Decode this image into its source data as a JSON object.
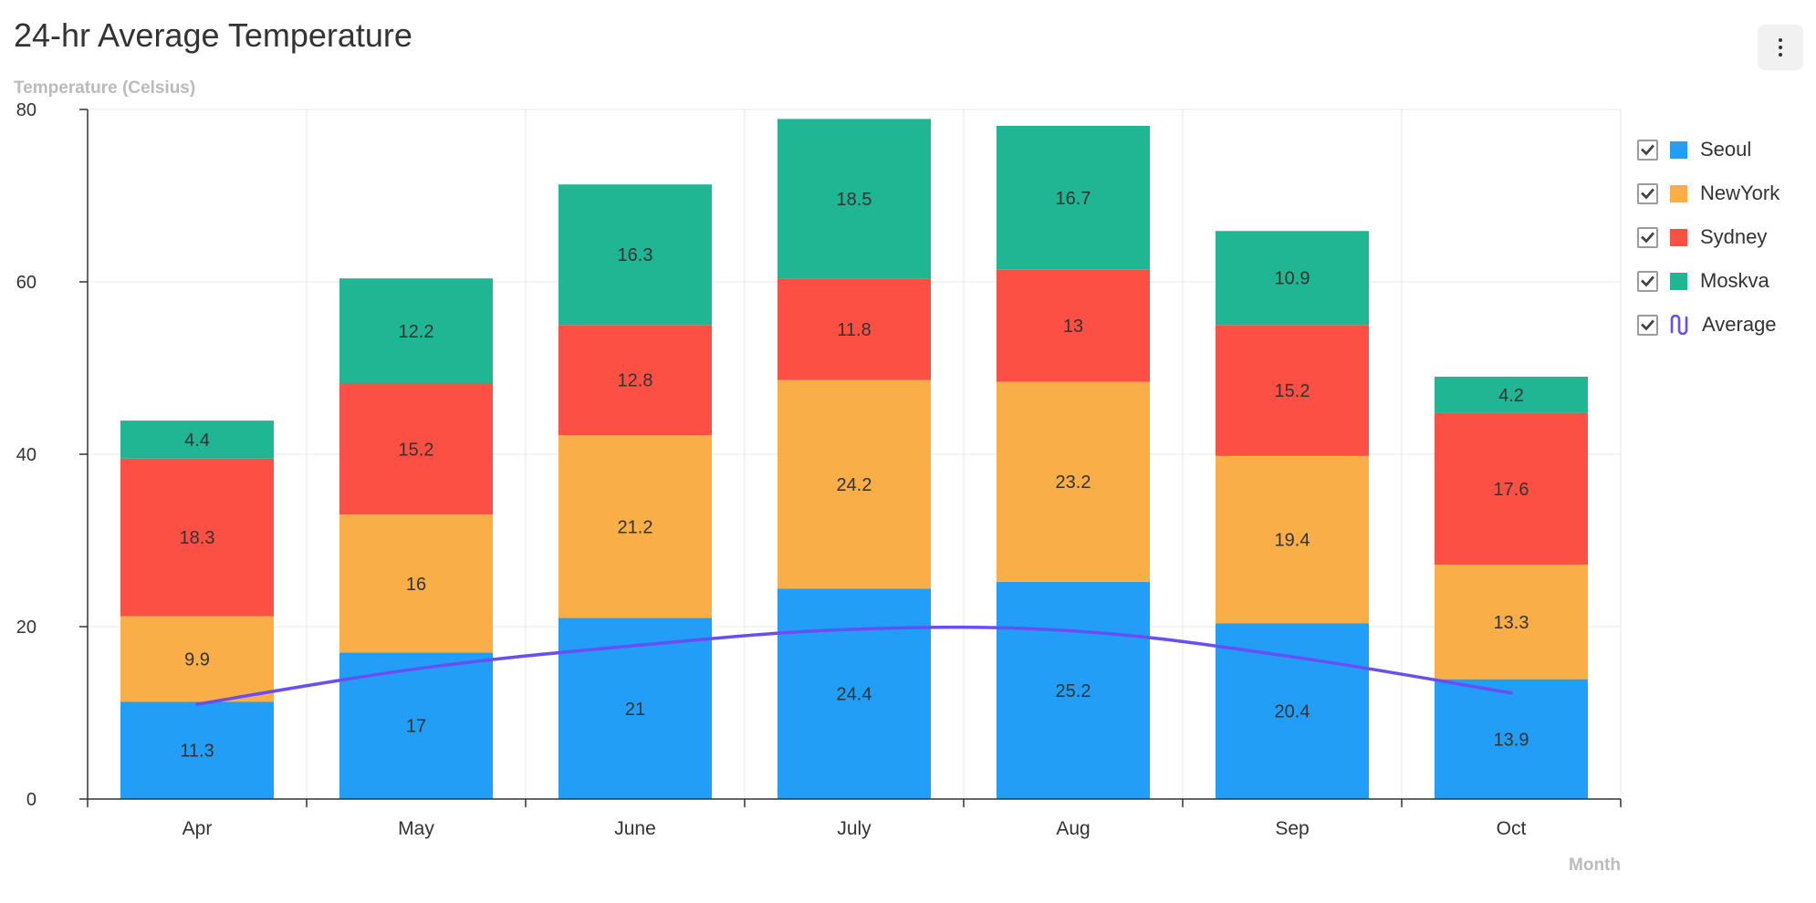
{
  "header": {
    "title": "24-hr Average Temperature"
  },
  "menu": {
    "icon": "more-vertical-icon"
  },
  "chart_data": {
    "type": "bar",
    "stacked": true,
    "title": "24-hr Average Temperature",
    "xlabel": "Month",
    "ylabel": "Temperature (Celsius)",
    "categories": [
      "Apr",
      "May",
      "June",
      "July",
      "Aug",
      "Sep",
      "Oct"
    ],
    "ylim": [
      0,
      80
    ],
    "yticks": [
      0,
      20,
      40,
      60,
      80
    ],
    "grid": true,
    "legend_position": "right",
    "series": [
      {
        "name": "Seoul",
        "type": "bar",
        "color": "#229ef6",
        "values": [
          11.3,
          17,
          21,
          24.4,
          25.2,
          20.4,
          13.9
        ]
      },
      {
        "name": "NewYork",
        "type": "bar",
        "color": "#f9ae47",
        "values": [
          9.9,
          16,
          21.2,
          24.2,
          23.2,
          19.4,
          13.3
        ]
      },
      {
        "name": "Sydney",
        "type": "bar",
        "color": "#fd5044",
        "values": [
          18.3,
          15.2,
          12.8,
          11.8,
          13,
          15.2,
          17.6
        ]
      },
      {
        "name": "Moskva",
        "type": "bar",
        "color": "#20b593",
        "values": [
          4.4,
          12.2,
          16.3,
          18.5,
          16.7,
          10.9,
          4.2
        ]
      },
      {
        "name": "Average",
        "type": "line",
        "color": "#6a4ef5",
        "values": [
          11,
          15.1,
          17.8,
          19.7,
          19.5,
          16.5,
          12.3
        ]
      }
    ]
  }
}
